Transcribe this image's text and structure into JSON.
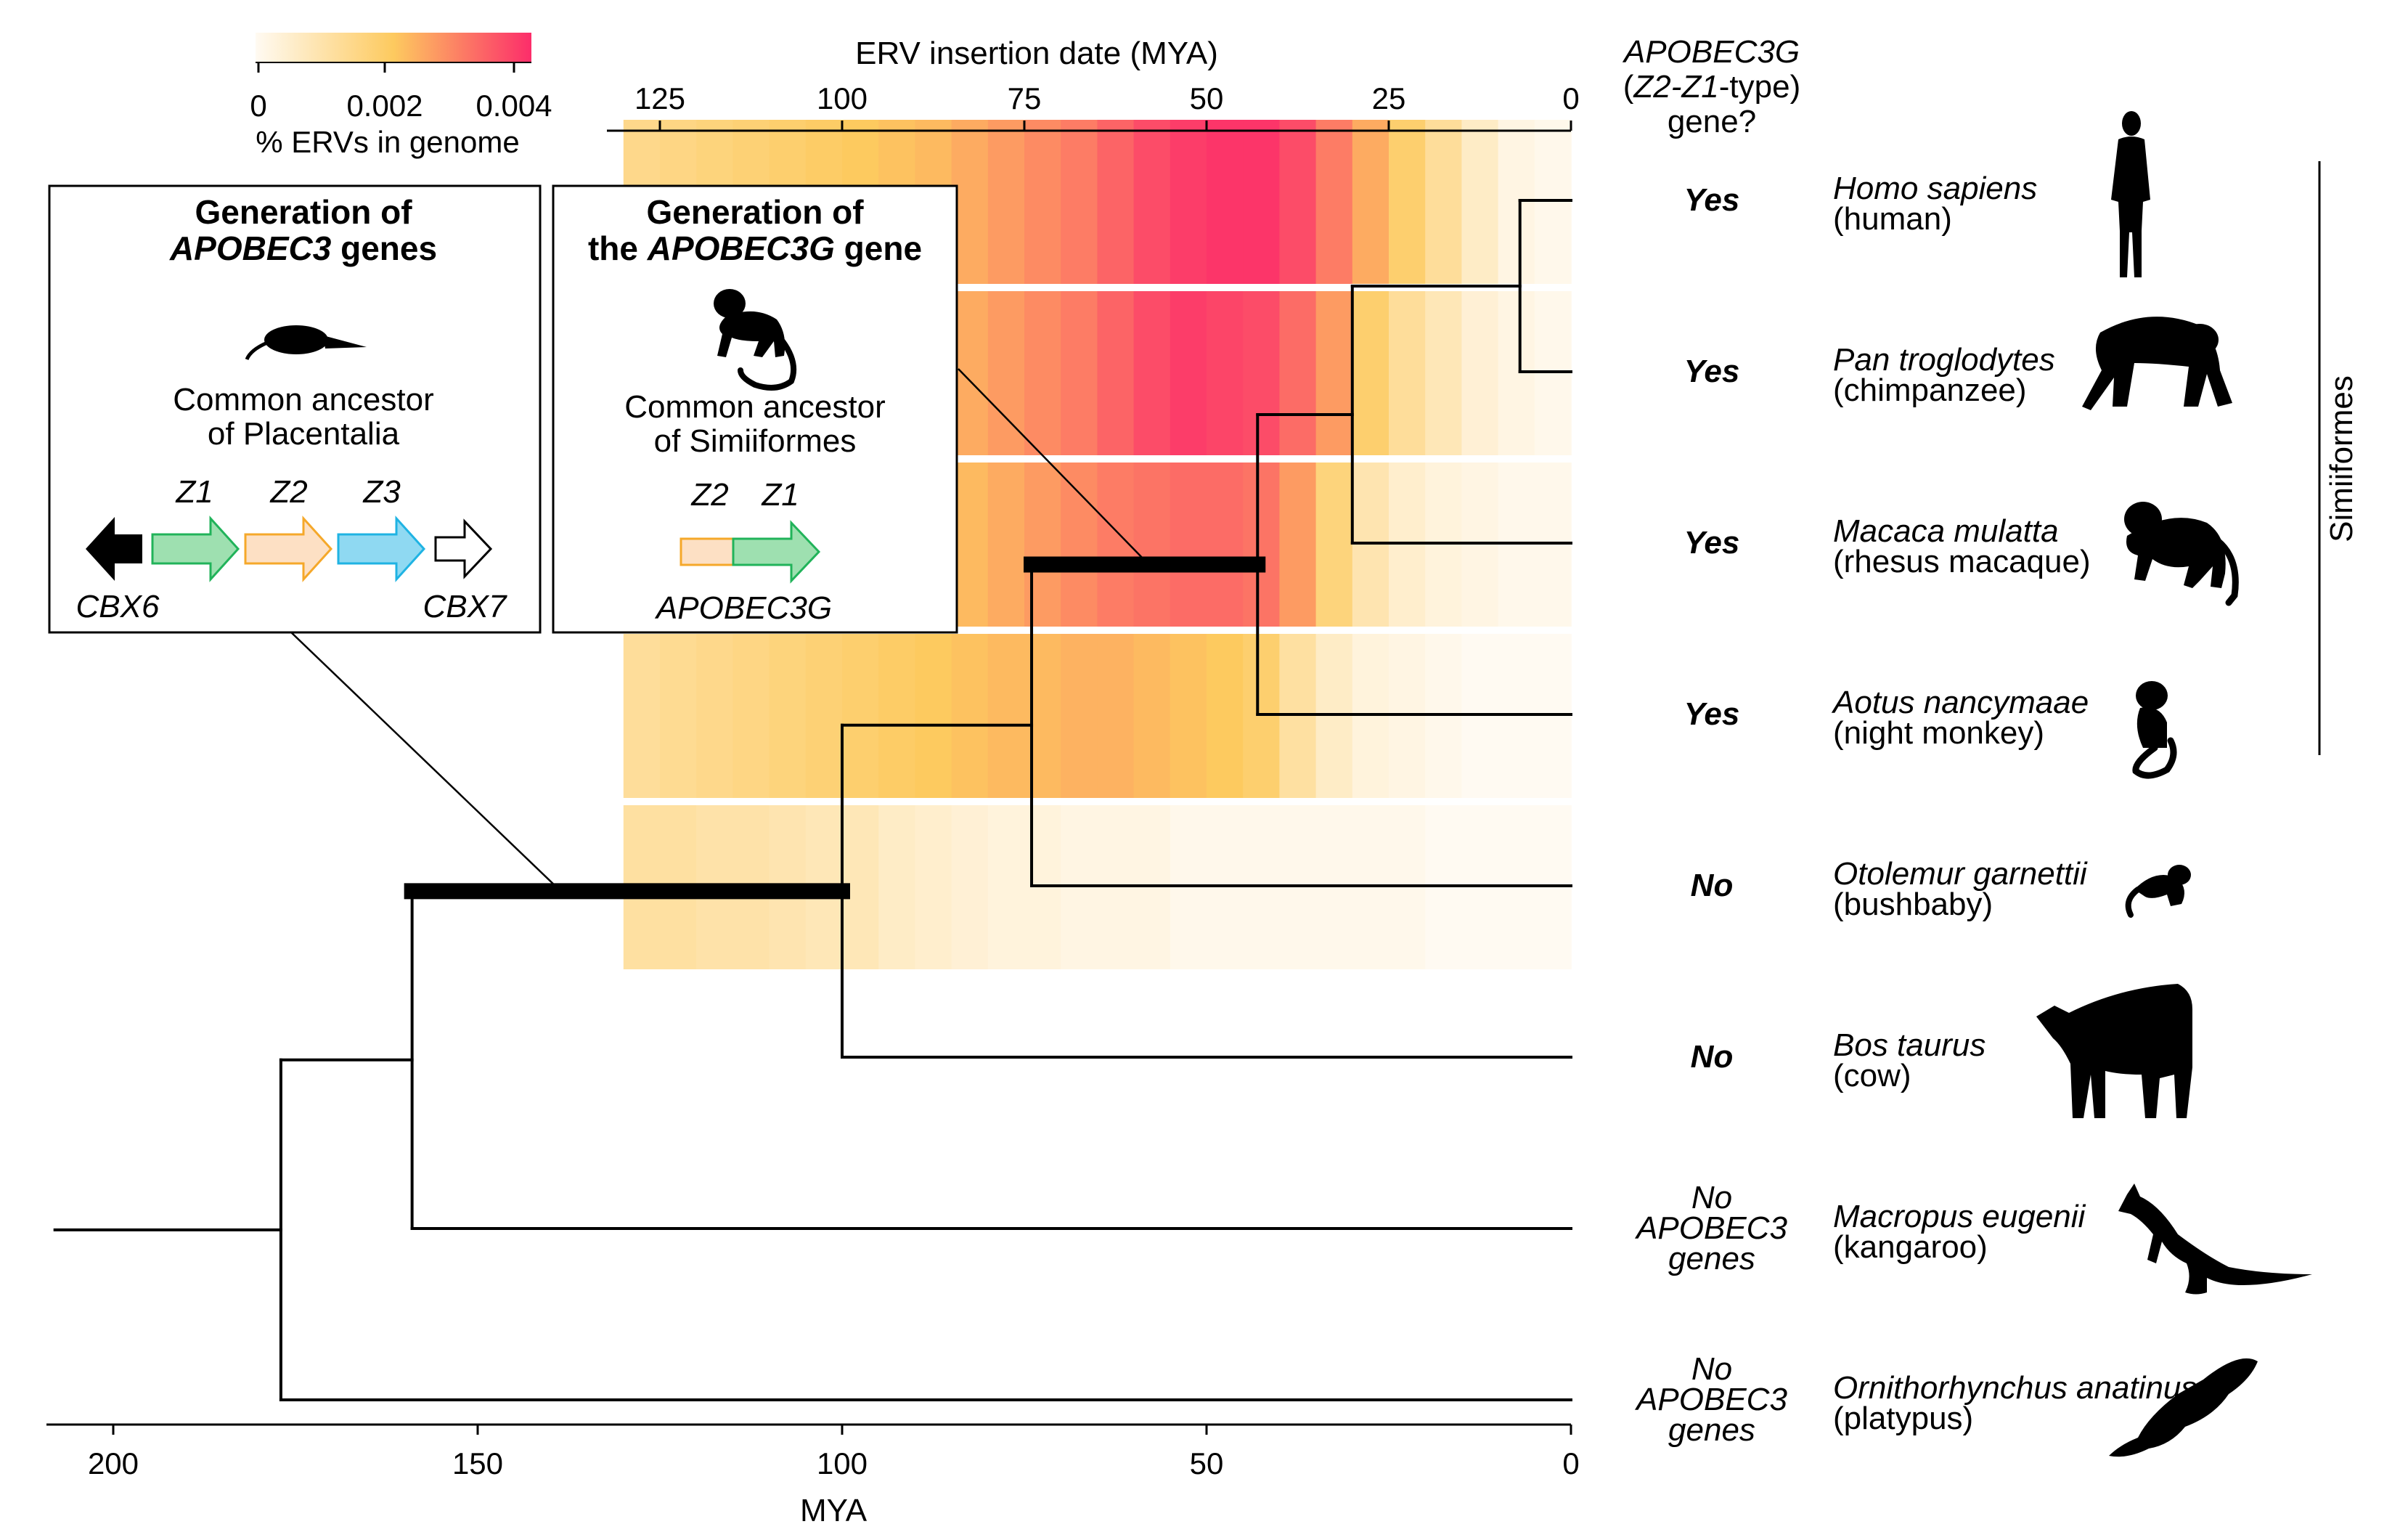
{
  "colors": {
    "yes": "#e8382e",
    "no": "#000000",
    "no_apobec": "#1a1ad6",
    "z1": "#21b35a",
    "z1_fill": "#9ee0b0",
    "z2": "#f5a82a",
    "z2_fill": "#fde0c4",
    "z3": "#1fb3e3",
    "z3_fill": "#8fd9f2",
    "apobec3g_label": "#e8382e",
    "heat_low": "#fffaf2",
    "heat_mid": "#fdca5f",
    "heat_high": "#fc2d6a"
  },
  "colorbar": {
    "ticks": [
      "0",
      "0.002",
      "0.004"
    ],
    "label": "% ERVs in genome",
    "range": [
      0,
      0.004
    ]
  },
  "top_axis": {
    "title": "ERV insertion date (MYA)",
    "ticks": [
      "125",
      "100",
      "75",
      "50",
      "25",
      "0"
    ]
  },
  "bottom_axis": {
    "title": "MYA",
    "ticks": [
      "200",
      "150",
      "100",
      "50",
      "0"
    ]
  },
  "column_header": {
    "line1_italic": "APOBEC3G",
    "line2_open": "(",
    "line2_italic": "Z2-Z1",
    "line2_rest": "-type)",
    "line3": "gene?"
  },
  "clade_label": "Simiiformes",
  "species": [
    {
      "latin": "Homo sapiens",
      "common": "(human)",
      "answer": [
        "Yes"
      ],
      "status": "yes",
      "silhouette": "human-silhouette-icon"
    },
    {
      "latin": "Pan troglodytes",
      "common": "(chimpanzee)",
      "answer": [
        "Yes"
      ],
      "status": "yes",
      "silhouette": "chimpanzee-silhouette-icon"
    },
    {
      "latin": "Macaca mulatta",
      "common": "(rhesus macaque)",
      "answer": [
        "Yes"
      ],
      "status": "yes",
      "silhouette": "macaque-silhouette-icon"
    },
    {
      "latin": "Aotus nancymaae",
      "common": "(night monkey)",
      "answer": [
        "Yes"
      ],
      "status": "yes",
      "silhouette": "night-monkey-silhouette-icon"
    },
    {
      "latin": "Otolemur garnettii",
      "common": "(bushbaby)",
      "answer": [
        "No"
      ],
      "status": "no",
      "silhouette": "bushbaby-silhouette-icon"
    },
    {
      "latin": "Bos taurus",
      "common": "(cow)",
      "answer": [
        "No"
      ],
      "status": "no",
      "silhouette": "cow-silhouette-icon"
    },
    {
      "latin": "Macropus eugenii",
      "common": "(kangaroo)",
      "answer": [
        "No",
        "APOBEC3",
        "genes"
      ],
      "status": "no_apobec",
      "silhouette": "kangaroo-silhouette-icon"
    },
    {
      "latin": "Ornithorhynchus anatinus",
      "common": "(platypus)",
      "answer": [
        "No",
        "APOBEC3",
        "genes"
      ],
      "status": "no_apobec",
      "silhouette": "platypus-silhouette-icon"
    }
  ],
  "tree_nodes_mya": {
    "human_chimp": 7,
    "great_apes_macaque": 30,
    "catarrhini_aotus": 43,
    "simiiformes_bushbaby": 74,
    "primates_cow": 100,
    "placentalia_kangaroo": 159,
    "mammalia_root": 177,
    "root_start": 208
  },
  "heatmap": {
    "ages_mya": [
      130,
      125,
      120,
      115,
      110,
      105,
      100,
      95,
      90,
      85,
      80,
      75,
      70,
      65,
      60,
      55,
      50,
      45,
      40,
      35,
      30,
      25,
      20,
      15,
      10,
      5
    ],
    "rows": [
      {
        "species": "Homo sapiens",
        "values": [
          0.0014,
          0.0015,
          0.0016,
          0.0017,
          0.0018,
          0.0019,
          0.002,
          0.0021,
          0.0022,
          0.0024,
          0.0026,
          0.0028,
          0.003,
          0.0033,
          0.0036,
          0.0038,
          0.0039,
          0.0039,
          0.0036,
          0.003,
          0.0024,
          0.0018,
          0.0012,
          0.0006,
          0.0002,
          0.0001
        ]
      },
      {
        "species": "Pan troglodytes",
        "values": [
          0.0014,
          0.0015,
          0.0016,
          0.0017,
          0.0018,
          0.0019,
          0.002,
          0.0021,
          0.0022,
          0.0024,
          0.0026,
          0.0028,
          0.003,
          0.0033,
          0.0036,
          0.0038,
          0.0037,
          0.0036,
          0.0032,
          0.0026,
          0.0018,
          0.0012,
          0.0008,
          0.0004,
          0.0002,
          0.0001
        ]
      },
      {
        "species": "Macaca mulatta",
        "values": [
          0.0013,
          0.0014,
          0.0015,
          0.0016,
          0.0017,
          0.0018,
          0.0019,
          0.002,
          0.0021,
          0.0022,
          0.0024,
          0.0026,
          0.0028,
          0.003,
          0.0031,
          0.0032,
          0.0032,
          0.0031,
          0.0026,
          0.0016,
          0.0009,
          0.0005,
          0.0003,
          0.0002,
          0.0001,
          0.0001
        ]
      },
      {
        "species": "Aotus nancymaae",
        "values": [
          0.0012,
          0.0013,
          0.0014,
          0.0015,
          0.0016,
          0.0017,
          0.0018,
          0.0019,
          0.002,
          0.0021,
          0.0022,
          0.0022,
          0.0023,
          0.0023,
          0.0022,
          0.0021,
          0.002,
          0.0018,
          0.0011,
          0.0006,
          0.0003,
          0.0002,
          0.0001,
          0.0,
          0.0,
          0.0
        ]
      },
      {
        "species": "Otolemur garnettii",
        "values": [
          0.0011,
          0.0011,
          0.001,
          0.001,
          0.0009,
          0.0008,
          0.0008,
          0.0006,
          0.0005,
          0.0004,
          0.0003,
          0.0003,
          0.0002,
          0.0002,
          0.0002,
          0.0001,
          0.0001,
          0.0001,
          0.0001,
          0.0001,
          0.0001,
          0.0001,
          0.0,
          0.0,
          0.0,
          0.0
        ]
      }
    ]
  },
  "inset_left": {
    "title_line1": "Generation of",
    "title_line2_italic": "APOBEC3",
    "title_line2_rest": " genes",
    "silhouette": "shrew-silhouette-icon",
    "caption_line1": "Common ancestor",
    "caption_line2": "of Placentalia",
    "gene_labels": [
      "Z1",
      "Z2",
      "Z3"
    ],
    "flank_left": "CBX6",
    "flank_right": "CBX7"
  },
  "inset_right": {
    "title_line1": "Generation of",
    "title_line2_pre": "the ",
    "title_line2_italic": "APOBEC3G",
    "title_line2_rest": " gene",
    "silhouette": "monkey-silhouette-icon",
    "caption_line1": "Common ancestor",
    "caption_line2": "of Simiiformes",
    "gene_labels": [
      "Z2",
      "Z1"
    ],
    "gene_name": "APOBEC3G"
  }
}
